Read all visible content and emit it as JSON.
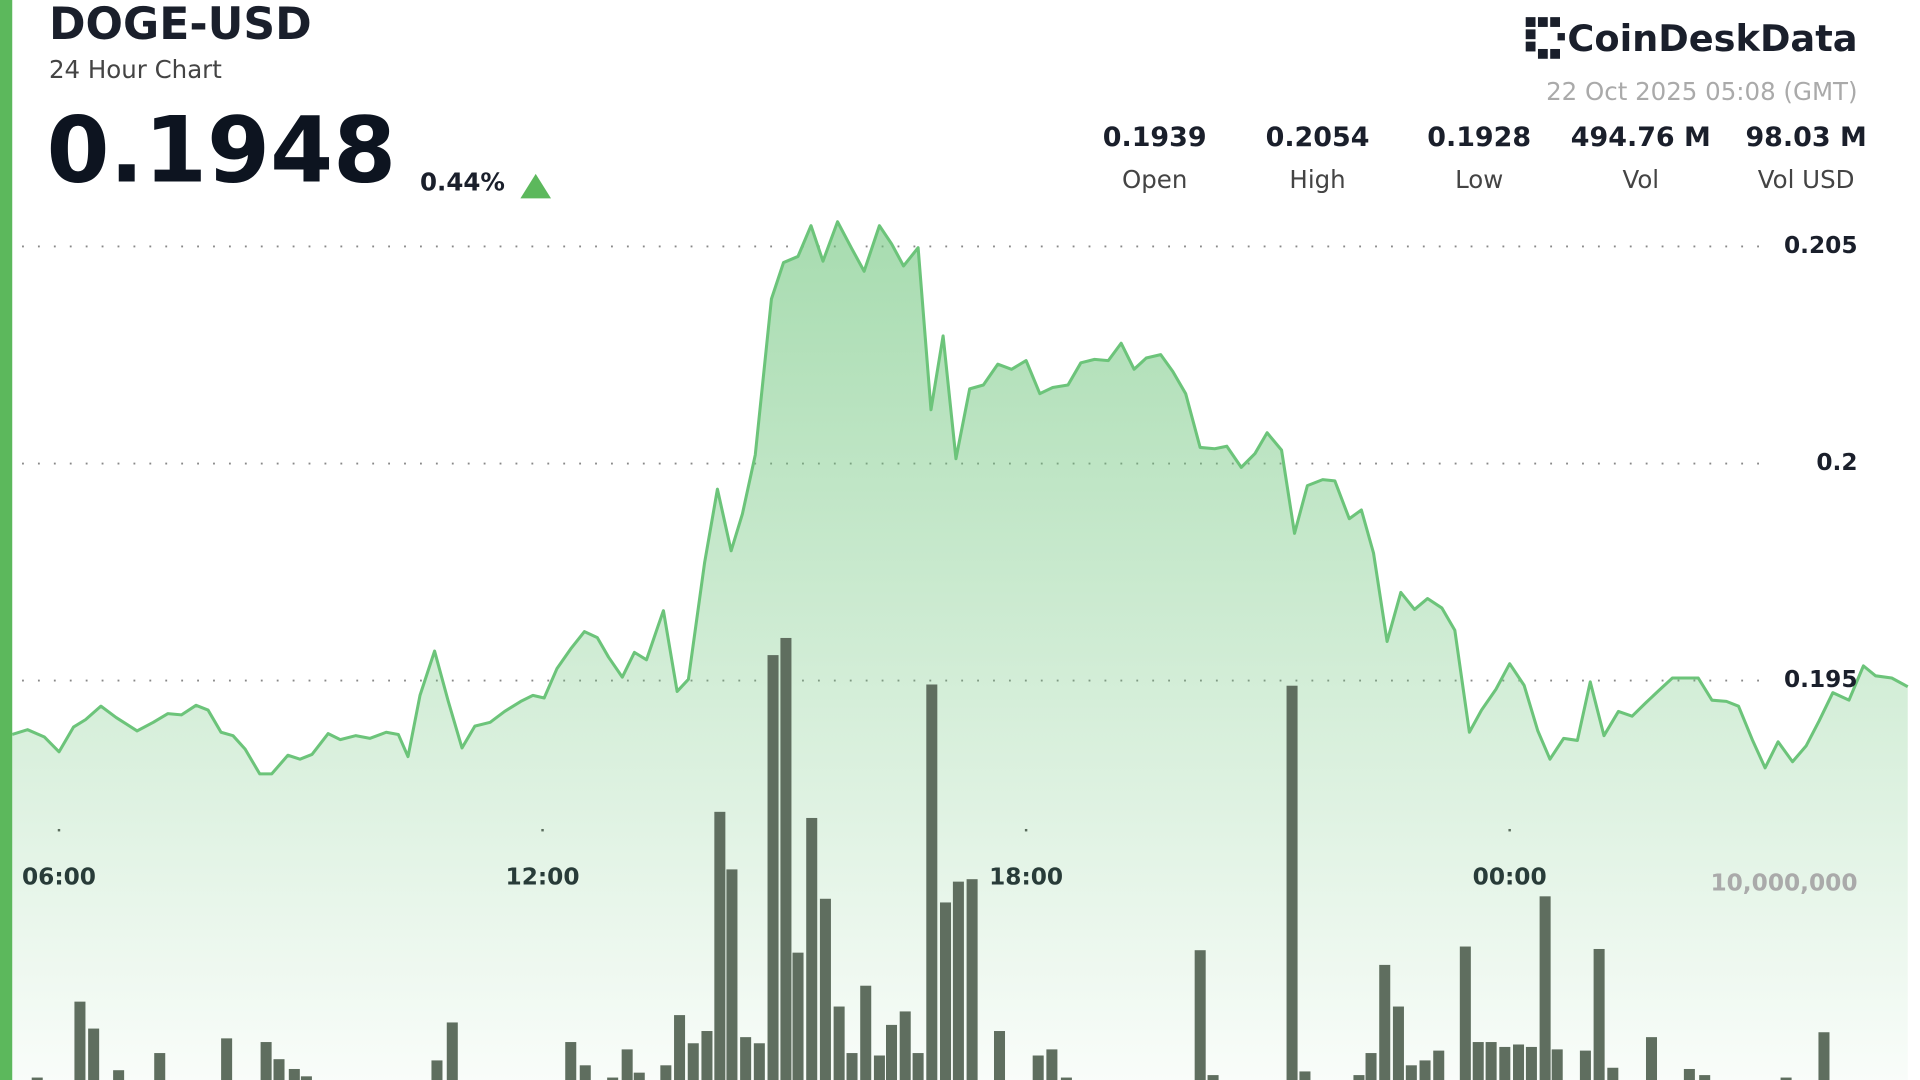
{
  "header": {
    "symbol": "DOGE-USD",
    "subtitle": "24 Hour Chart",
    "price": "0.1948",
    "change": "0.44%",
    "brand": "CoinDeskData",
    "timestamp": "22 Oct 2025 05:08 (GMT)",
    "stats": [
      {
        "value": "0.1939",
        "label": "Open"
      },
      {
        "value": "0.2054",
        "label": "High"
      },
      {
        "value": "0.1928",
        "label": "Low"
      },
      {
        "value": "494.76 M",
        "label": "Vol"
      },
      {
        "value": "98.03 M",
        "label": "Vol USD"
      }
    ]
  },
  "chart_data": {
    "type": "line",
    "xlim": [
      5.42,
      28.97
    ],
    "xticks": [
      {
        "value": 6,
        "label": "06:00"
      },
      {
        "value": 12,
        "label": "12:00"
      },
      {
        "value": 18,
        "label": "18:00"
      },
      {
        "value": 24,
        "label": "00:00"
      }
    ],
    "ylim": [
      0.1858,
      0.2056
    ],
    "yticks": [
      0.195,
      0.2,
      0.205
    ],
    "y2lim": [
      0,
      43875000
    ],
    "y2ticks": [
      {
        "value": 10000000,
        "label": "10,000,000"
      }
    ],
    "grid": true,
    "series": [
      {
        "type": "line",
        "color": "#6cc47a",
        "x": [
          5.42,
          5.61,
          5.82,
          6.0,
          6.18,
          6.33,
          6.52,
          6.71,
          6.97,
          7.17,
          7.35,
          7.52,
          7.7,
          7.85,
          8.01,
          8.16,
          8.31,
          8.49,
          8.64,
          8.84,
          8.99,
          9.14,
          9.34,
          9.49,
          9.68,
          9.86,
          10.06,
          10.21,
          10.33,
          10.48,
          10.66,
          10.83,
          11.0,
          11.16,
          11.35,
          11.53,
          11.73,
          11.88,
          12.02,
          12.18,
          12.35,
          12.52,
          12.68,
          12.82,
          12.99,
          13.14,
          13.29,
          13.43,
          13.5,
          13.67,
          13.81,
          14.01,
          14.17,
          14.34,
          14.48,
          14.64,
          14.84,
          14.99,
          15.17,
          15.33,
          15.48,
          15.66,
          15.84,
          15.99,
          16.18,
          16.33,
          16.48,
          16.66,
          16.82,
          16.97,
          17.13,
          17.3,
          17.47,
          17.65,
          17.82,
          18.0,
          18.17,
          18.33,
          18.52,
          18.68,
          18.85,
          19.02,
          19.18,
          19.34,
          19.49,
          19.67,
          19.82,
          19.98,
          20.16,
          20.34,
          20.49,
          20.67,
          20.84,
          20.99,
          21.17,
          21.33,
          21.49,
          21.68,
          21.83,
          22.01,
          22.16,
          22.31,
          22.48,
          22.65,
          22.82,
          22.98,
          23.16,
          23.32,
          23.5,
          23.65,
          23.83,
          24.0,
          24.18,
          24.35,
          24.5,
          24.67,
          24.84,
          25.0,
          25.17,
          25.35,
          25.52,
          25.69,
          25.85,
          26.02,
          26.17,
          26.34,
          26.51,
          26.69,
          26.84,
          27.01,
          27.17,
          27.33,
          27.51,
          27.68,
          27.84,
          28.01,
          28.21,
          28.39,
          28.54,
          28.74,
          28.94
        ],
        "values": [
          0.19376,
          0.19387,
          0.1937,
          0.19336,
          0.19393,
          0.1941,
          0.19441,
          0.19415,
          0.19384,
          0.19404,
          0.19424,
          0.19421,
          0.19443,
          0.19432,
          0.19381,
          0.19373,
          0.19342,
          0.19285,
          0.19285,
          0.19328,
          0.19319,
          0.1933,
          0.19378,
          0.19364,
          0.19373,
          0.19367,
          0.19381,
          0.19376,
          0.19325,
          0.19466,
          0.19568,
          0.19452,
          0.19345,
          0.19395,
          0.19404,
          0.19429,
          0.19452,
          0.19466,
          0.1946,
          0.19528,
          0.19573,
          0.19613,
          0.19599,
          0.19554,
          0.19508,
          0.19565,
          0.19548,
          0.19624,
          0.19661,
          0.19475,
          0.19503,
          0.19771,
          0.19941,
          0.19799,
          0.19884,
          0.2002,
          0.20379,
          0.20463,
          0.20477,
          0.20548,
          0.20466,
          0.20557,
          0.20494,
          0.20443,
          0.20548,
          0.20506,
          0.20455,
          0.20497,
          0.20124,
          0.20294,
          0.20011,
          0.20172,
          0.20181,
          0.20229,
          0.20217,
          0.20237,
          0.20161,
          0.20175,
          0.20181,
          0.20232,
          0.2024,
          0.20237,
          0.20277,
          0.20217,
          0.20243,
          0.20251,
          0.20212,
          0.20161,
          0.20037,
          0.20034,
          0.2004,
          0.19991,
          0.20023,
          0.20071,
          0.20031,
          0.19839,
          0.19949,
          0.19963,
          0.1996,
          0.19873,
          0.19893,
          0.19794,
          0.1959,
          0.19703,
          0.19664,
          0.19689,
          0.19667,
          0.19616,
          0.19381,
          0.19432,
          0.1948,
          0.19539,
          0.19489,
          0.19384,
          0.19319,
          0.19367,
          0.19362,
          0.19497,
          0.19373,
          0.19429,
          0.19418,
          0.19449,
          0.19477,
          0.19506,
          0.19506,
          0.19506,
          0.19455,
          0.19452,
          0.19441,
          0.19364,
          0.19299,
          0.19359,
          0.19313,
          0.1935,
          0.19407,
          0.19472,
          0.19455,
          0.19534,
          0.19511,
          0.19506,
          0.19486
        ]
      },
      {
        "type": "bar",
        "axis": "y2",
        "color": "#5f6e5f",
        "x": [
          5.73,
          6.26,
          6.43,
          6.74,
          7.25,
          8.08,
          8.57,
          8.73,
          8.92,
          9.07,
          10.69,
          10.88,
          12.35,
          12.53,
          12.87,
          13.05,
          13.2,
          13.53,
          13.7,
          13.87,
          14.04,
          14.2,
          14.35,
          14.52,
          14.69,
          14.86,
          15.02,
          15.17,
          15.34,
          15.51,
          15.68,
          15.84,
          16.01,
          16.18,
          16.33,
          16.5,
          16.66,
          16.83,
          17.0,
          17.16,
          17.33,
          17.67,
          18.15,
          18.32,
          18.5,
          20.16,
          20.32,
          21.3,
          21.46,
          22.13,
          22.28,
          22.45,
          22.62,
          22.78,
          22.95,
          23.12,
          23.45,
          23.61,
          23.77,
          23.94,
          24.11,
          24.27,
          24.44,
          24.59,
          24.94,
          25.11,
          25.28,
          25.76,
          26.23,
          26.42,
          27.43,
          27.9
        ],
        "values": [
          125000,
          4000000,
          2625000,
          500000,
          1375000,
          2125000,
          1937500,
          1062500,
          562500,
          187500,
          1000000,
          2937500,
          1937500,
          750000,
          125000,
          1562500,
          375000,
          750000,
          3312500,
          1875000,
          2500000,
          13687500,
          10750000,
          2187500,
          1875000,
          21687500,
          22562500,
          6500000,
          13375000,
          9250000,
          3750000,
          1375000,
          4812500,
          1250000,
          2812500,
          3500000,
          1375000,
          20187500,
          9062500,
          10125000,
          10250000,
          2500000,
          1250000,
          1562500,
          125000,
          6625000,
          250000,
          20125000,
          437500,
          250000,
          1375000,
          5875000,
          3750000,
          750000,
          1000000,
          1500000,
          6812500,
          1937500,
          1937500,
          1687500,
          1812500,
          1687500,
          9375000,
          1562500,
          1500000,
          6687500,
          625000,
          2187500,
          562500,
          250000,
          125000,
          2437500
        ]
      }
    ]
  }
}
